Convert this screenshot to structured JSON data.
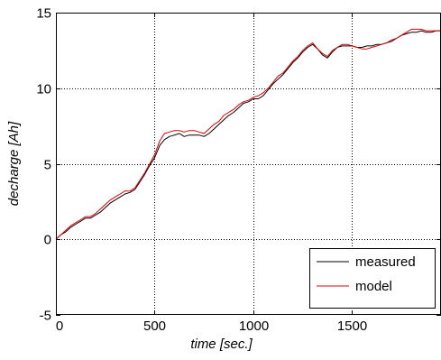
{
  "chart_data": {
    "type": "line",
    "title": "",
    "xlabel": "time [sec.]",
    "ylabel": "decharge [Ah]",
    "xlim": [
      0,
      1950
    ],
    "ylim": [
      -5,
      15
    ],
    "xticks": [
      0,
      500,
      1000,
      1500
    ],
    "yticks": [
      -5,
      0,
      5,
      10,
      15
    ],
    "xtick_labels": [
      "0",
      "500",
      "1000",
      "1500"
    ],
    "ytick_labels": [
      "-5",
      "0",
      "5",
      "10",
      "15"
    ],
    "grid": true,
    "legend_position": "bottom-right",
    "series": [
      {
        "name": "measured",
        "color": "#000000",
        "x": [
          0,
          25,
          50,
          75,
          100,
          125,
          150,
          175,
          200,
          225,
          250,
          275,
          300,
          325,
          350,
          375,
          400,
          425,
          450,
          475,
          500,
          525,
          550,
          575,
          600,
          625,
          650,
          675,
          700,
          725,
          750,
          775,
          800,
          825,
          850,
          875,
          900,
          925,
          950,
          975,
          1000,
          1025,
          1050,
          1075,
          1100,
          1125,
          1150,
          1175,
          1200,
          1225,
          1250,
          1275,
          1300,
          1325,
          1350,
          1375,
          1400,
          1425,
          1450,
          1475,
          1500,
          1525,
          1550,
          1575,
          1600,
          1625,
          1650,
          1675,
          1700,
          1725,
          1750,
          1775,
          1800,
          1825,
          1850,
          1875,
          1900,
          1925,
          1950
        ],
        "y": [
          0.0,
          0.3,
          0.5,
          0.8,
          1.0,
          1.2,
          1.4,
          1.4,
          1.6,
          1.8,
          2.1,
          2.4,
          2.6,
          2.8,
          3.0,
          3.1,
          3.3,
          3.8,
          4.3,
          4.9,
          5.4,
          6.2,
          6.6,
          6.8,
          6.9,
          7.0,
          6.8,
          6.9,
          6.9,
          6.9,
          6.8,
          7.0,
          7.3,
          7.6,
          7.9,
          8.2,
          8.4,
          8.7,
          9.0,
          9.1,
          9.3,
          9.3,
          9.5,
          9.9,
          10.3,
          10.6,
          10.9,
          11.3,
          11.7,
          12.0,
          12.4,
          12.7,
          12.9,
          12.6,
          12.2,
          12.0,
          12.4,
          12.7,
          12.8,
          12.8,
          12.8,
          12.7,
          12.7,
          12.8,
          12.8,
          12.9,
          12.9,
          13.0,
          13.1,
          13.3,
          13.5,
          13.6,
          13.7,
          13.7,
          13.8,
          13.7,
          13.7,
          13.8,
          13.8
        ]
      },
      {
        "name": "model",
        "color": "#e00000",
        "x": [
          0,
          25,
          50,
          75,
          100,
          125,
          150,
          175,
          200,
          225,
          250,
          275,
          300,
          325,
          350,
          375,
          400,
          425,
          450,
          475,
          500,
          525,
          550,
          575,
          600,
          625,
          650,
          675,
          700,
          725,
          750,
          775,
          800,
          825,
          850,
          875,
          900,
          925,
          950,
          975,
          1000,
          1025,
          1050,
          1075,
          1100,
          1125,
          1150,
          1175,
          1200,
          1225,
          1250,
          1275,
          1300,
          1325,
          1350,
          1375,
          1400,
          1425,
          1450,
          1475,
          1500,
          1525,
          1550,
          1575,
          1600,
          1625,
          1650,
          1675,
          1700,
          1725,
          1750,
          1775,
          1800,
          1825,
          1850,
          1875,
          1900,
          1925,
          1950
        ],
        "y": [
          0.0,
          0.3,
          0.6,
          0.9,
          1.1,
          1.3,
          1.5,
          1.5,
          1.7,
          2.0,
          2.3,
          2.6,
          2.8,
          3.0,
          3.2,
          3.2,
          3.4,
          3.9,
          4.4,
          5.0,
          5.6,
          6.5,
          7.0,
          7.1,
          7.2,
          7.2,
          7.1,
          7.2,
          7.2,
          7.1,
          7.0,
          7.3,
          7.6,
          7.8,
          8.2,
          8.4,
          8.6,
          8.9,
          9.1,
          9.2,
          9.4,
          9.5,
          9.7,
          10.0,
          10.4,
          10.8,
          11.0,
          11.4,
          11.8,
          12.1,
          12.5,
          12.8,
          13.0,
          12.6,
          12.3,
          12.1,
          12.5,
          12.7,
          12.9,
          12.9,
          12.8,
          12.7,
          12.6,
          12.6,
          12.7,
          12.8,
          12.9,
          13.0,
          13.2,
          13.3,
          13.5,
          13.7,
          13.9,
          13.9,
          13.9,
          13.8,
          13.8,
          13.8,
          13.8
        ]
      }
    ]
  }
}
